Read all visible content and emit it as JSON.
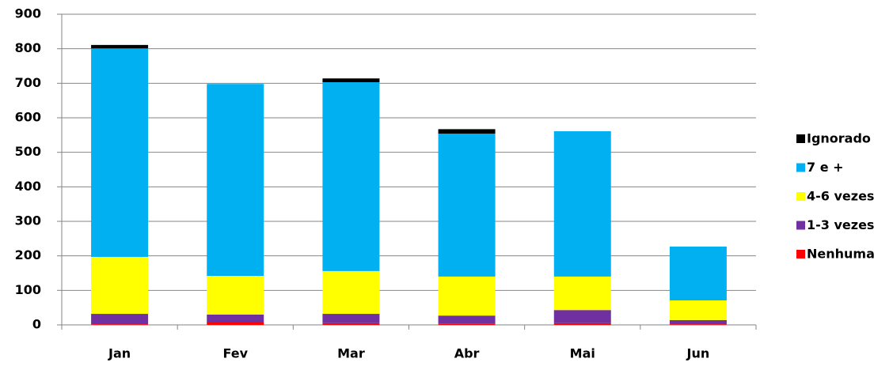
{
  "chart_data": {
    "type": "stacked_bar",
    "categories": [
      "Jan",
      "Fev",
      "Mar",
      "Abr",
      "Mai",
      "Jun"
    ],
    "series": [
      {
        "name": "Nenhuma",
        "color": "#ff0000",
        "values": [
          2,
          8,
          5,
          3,
          5,
          2
        ]
      },
      {
        "name": "1-3 vezes",
        "color": "#7030a0",
        "values": [
          30,
          22,
          27,
          24,
          38,
          12
        ]
      },
      {
        "name": "4-6 vezes",
        "color": "#ffff00",
        "values": [
          165,
          112,
          124,
          113,
          97,
          57
        ]
      },
      {
        "name": "7 e +",
        "color": "#00b0f0",
        "values": [
          604,
          556,
          547,
          414,
          421,
          156
        ]
      },
      {
        "name": "Ignorado",
        "color": "#000000",
        "values": [
          10,
          0,
          11,
          13,
          0,
          0
        ]
      }
    ],
    "ylim": [
      0,
      900
    ],
    "yticks": [
      0,
      100,
      200,
      300,
      400,
      500,
      600,
      700,
      800,
      900
    ],
    "grid": true,
    "legend": "right"
  }
}
